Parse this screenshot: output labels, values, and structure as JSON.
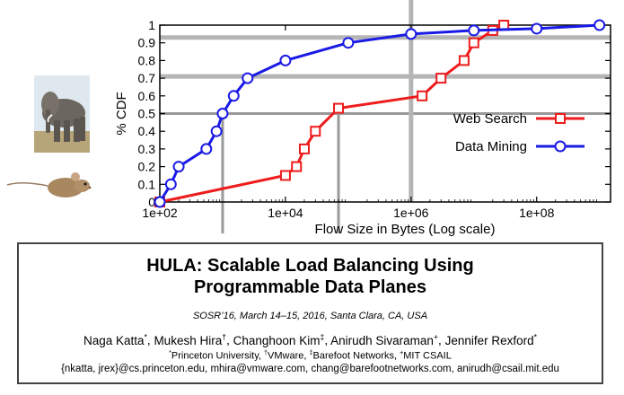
{
  "chart_data": {
    "type": "line",
    "xlabel": "Flow Size in Bytes (Log scale)",
    "ylabel": "% CDF",
    "x_scale": "log",
    "xlim": [
      100,
      1500000000
    ],
    "ylim": [
      0,
      1
    ],
    "x_ticks": [
      "1e+02",
      "1e+04",
      "1e+06",
      "1e+08"
    ],
    "y_ticks": [
      "0",
      "0.1",
      "0.2",
      "0.3",
      "0.4",
      "0.5",
      "0.6",
      "0.7",
      "0.8",
      "0.9",
      "1"
    ],
    "legend_position": "right",
    "grid": false,
    "series": [
      {
        "name": "Web Search",
        "color": "#ee1c1c",
        "marker": "square",
        "x": [
          100,
          10000,
          15000,
          20000,
          30000,
          70000,
          1500000,
          3000000,
          7000000,
          10000000,
          20000000,
          30000000
        ],
        "y": [
          0,
          0.15,
          0.2,
          0.3,
          0.4,
          0.53,
          0.6,
          0.7,
          0.8,
          0.9,
          0.97,
          1.0
        ]
      },
      {
        "name": "Data Mining",
        "color": "#1a1ae6",
        "marker": "circle",
        "x": [
          100,
          150,
          200,
          550,
          800,
          1000,
          1500,
          2500,
          10000,
          100000,
          1000000,
          10000000,
          100000000,
          1000000000
        ],
        "y": [
          0,
          0.1,
          0.2,
          0.3,
          0.4,
          0.5,
          0.6,
          0.7,
          0.8,
          0.9,
          0.95,
          0.97,
          0.98,
          1.0
        ]
      }
    ],
    "annotations": {
      "highlight_line_colors": [
        "#b5b5b5",
        "#999999"
      ]
    }
  },
  "paper": {
    "title_line1": "HULA: Scalable Load Balancing Using",
    "title_line2": "Programmable Data Planes",
    "venue": "SOSR’16, March 14–15, 2016, Santa Clara, CA, USA",
    "authors": [
      {
        "name": "Naga Katta",
        "mark": "*"
      },
      {
        "name": "Mukesh Hira",
        "mark": "†"
      },
      {
        "name": "Changhoon Kim",
        "mark": "‡"
      },
      {
        "name": "Anirudh Sivaraman",
        "mark": "+"
      },
      {
        "name": "Jennifer Rexford",
        "mark": "*"
      }
    ],
    "affiliations": [
      {
        "mark": "*",
        "name": "Princeton University"
      },
      {
        "mark": "†",
        "name": "VMware"
      },
      {
        "mark": "‡",
        "name": "Barefoot Networks"
      },
      {
        "mark": "+",
        "name": "MIT CSAIL"
      }
    ],
    "emails": "{nkatta, jrex}@cs.princeton.edu, mhira@vmware.com, chang@barefootnetworks.com, anirudh@csail.mit.edu"
  },
  "images": {
    "elephant": "elephant-photo",
    "mouse": "mouse-photo"
  }
}
